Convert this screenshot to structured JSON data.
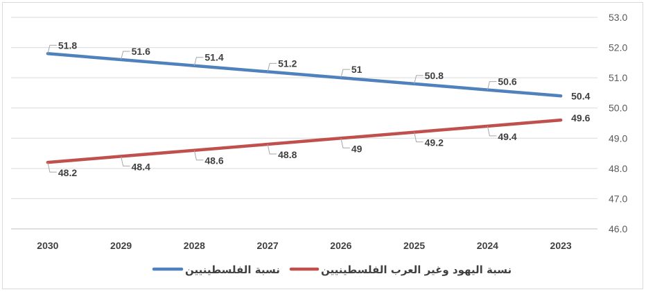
{
  "chart_data": {
    "type": "line",
    "title": "",
    "xlabel": "",
    "ylabel": "",
    "categories": [
      "2030",
      "2029",
      "2028",
      "2027",
      "2026",
      "2025",
      "2024",
      "2023"
    ],
    "ylim": [
      46.0,
      53.0
    ],
    "yticks": [
      "46.0",
      "47.0",
      "48.0",
      "49.0",
      "50.0",
      "51.0",
      "52.0",
      "53.0"
    ],
    "grid": true,
    "legend_position": "bottom",
    "series": [
      {
        "name": "نسبة الفلسطينيين",
        "color": "#4f81bd",
        "values": [
          51.8,
          51.6,
          51.4,
          51.2,
          51,
          50.8,
          50.6,
          50.4
        ],
        "labels": [
          "51.8",
          "51.6",
          "51.4",
          "51.2",
          "51",
          "50.8",
          "50.6",
          "50.4"
        ]
      },
      {
        "name": "نسبة اليهود وغير العرب الفلسطينيين",
        "color": "#c0504d",
        "values": [
          48.2,
          48.4,
          48.6,
          48.8,
          49,
          49.2,
          49.4,
          49.6
        ],
        "labels": [
          "48.2",
          "48.4",
          "48.6",
          "48.8",
          "49",
          "49.2",
          "49.4",
          "49.6"
        ]
      }
    ]
  }
}
